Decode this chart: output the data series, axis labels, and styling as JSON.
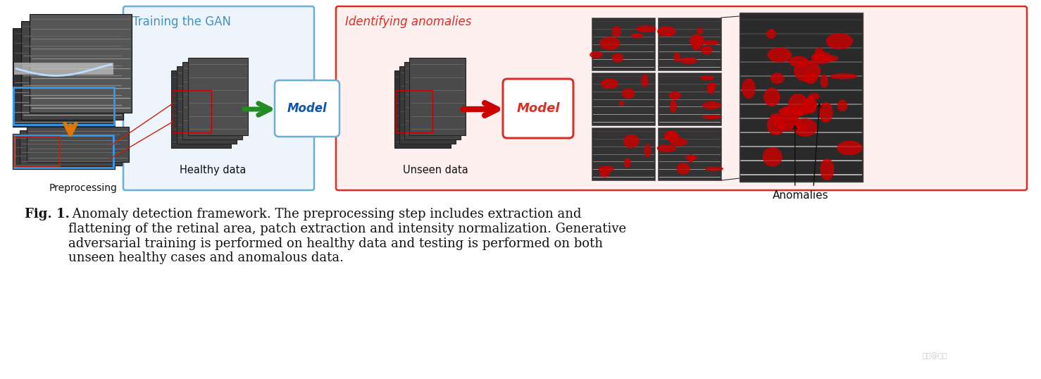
{
  "bg_color": "#ffffff",
  "train_box_color": "#6baed6",
  "train_box_fill": "#eef4fb",
  "train_box_label_color": "#4292c6",
  "anomaly_box_color": "#d73027",
  "anomaly_box_fill": "#fff0f0",
  "anomaly_box_label_color": "#d73027",
  "training_label": "Training the GAN",
  "anomaly_label": "Identifying anomalies",
  "model_train_label": "Model",
  "model_identify_label": "Model",
  "preprocessing_label": "Preprocessing",
  "healthy_data_label": "Healthy data",
  "unseen_data_label": "Unseen data",
  "anomalies_label": "Anomalies",
  "green_arrow_color": "#228B22",
  "red_arrow_color": "#cc0000",
  "orange_arrow_color": "#e07800",
  "caption_bold": "Fig. 1.",
  "caption_rest": " Anomaly detection framework. The preprocessing step includes extraction and\nflattening of the retinal area, patch extraction and intensity normalization. Generative\nadversarial training is performed on healthy data and testing is performed on both\nunseen healthy cases and anomalous data.",
  "caption_fontsize": 13.0
}
